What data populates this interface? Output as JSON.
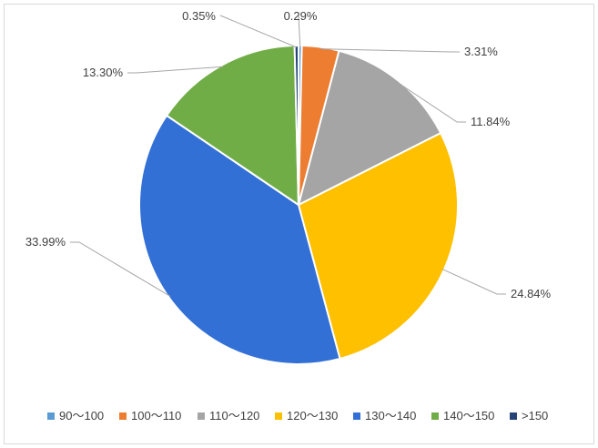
{
  "chart_data": {
    "type": "pie",
    "title": "",
    "series": [
      {
        "categories": [
          "90～100",
          "100～110",
          "110～120",
          "120～130",
          "130～140",
          "140～150",
          ">150"
        ],
        "values": [
          0.29,
          3.31,
          11.84,
          24.84,
          33.99,
          13.3,
          0.35
        ],
        "labels": [
          "0.29%",
          "3.31%",
          "11.84%",
          "24.84%",
          "33.99%",
          "13.30%",
          "0.35%"
        ],
        "colors": [
          "#5B9BD5",
          "#ED7D31",
          "#A5A5A5",
          "#FFC000",
          "#3370D6",
          "#70AD47",
          "#264478"
        ]
      }
    ],
    "legend": "bottom",
    "grid": false
  }
}
